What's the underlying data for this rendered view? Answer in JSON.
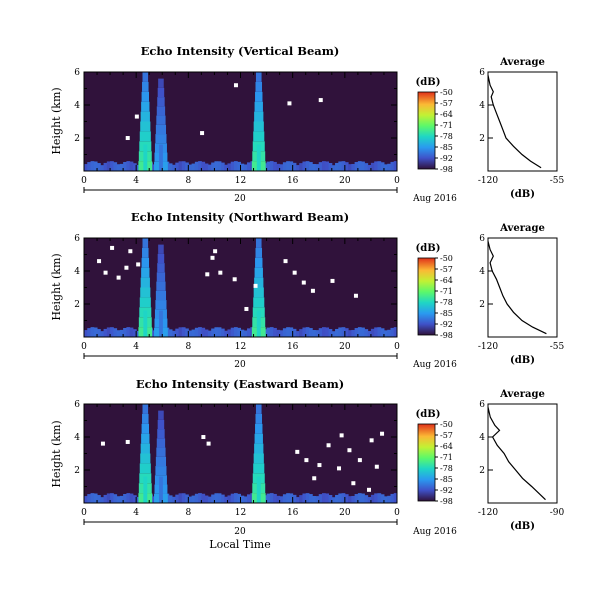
{
  "figure": {
    "date_label": "Aug 2016",
    "day_label": "20",
    "xlabel": "Local Time",
    "colorbar_title": "(dB)",
    "avg_title": "Average",
    "avg_xlabel": "(dB)"
  },
  "chart_data": [
    {
      "type": "heatmap",
      "title": "Echo Intensity (Vertical Beam)",
      "xlabel": "Local Time",
      "ylabel": "Height (km)",
      "xlim": [
        0,
        24
      ],
      "xticks": [
        "0",
        "4",
        "8",
        "12",
        "16",
        "20",
        "0"
      ],
      "ylim": [
        0,
        6
      ],
      "yticks": [
        "2",
        "4",
        "6"
      ],
      "colorbar": {
        "range": [
          -98,
          -50
        ],
        "ticks": [
          "-50",
          "-57",
          "-64",
          "-71",
          "-78",
          "-85",
          "-92",
          "-98"
        ]
      },
      "background_db": -98,
      "bursts": [
        {
          "t": 4.7,
          "top_km": 6.0,
          "peak_db": -74
        },
        {
          "t": 5.9,
          "top_km": 5.6,
          "peak_db": -84
        },
        {
          "t": 13.4,
          "top_km": 6.0,
          "peak_db": -74
        }
      ],
      "average_profile": {
        "title": "Average",
        "xlabel": "(dB)",
        "xlim": [
          -120,
          -55
        ],
        "xticks": [
          "-120",
          "-55"
        ],
        "ylabel": "Height (km)",
        "ylim": [
          0,
          6
        ],
        "yticks": [
          "2",
          "4",
          "6"
        ],
        "points": [
          [
            -70,
            0.2
          ],
          [
            -80,
            0.6
          ],
          [
            -88,
            1.0
          ],
          [
            -96,
            1.5
          ],
          [
            -103,
            2.0
          ],
          [
            -106,
            2.5
          ],
          [
            -109,
            3.0
          ],
          [
            -112,
            3.5
          ],
          [
            -115,
            4.0
          ],
          [
            -117,
            4.5
          ],
          [
            -115,
            4.8
          ],
          [
            -118,
            5.2
          ],
          [
            -120,
            5.8
          ]
        ]
      },
      "missing_cells": [
        [
          3.2,
          2.0
        ],
        [
          8.9,
          2.3
        ],
        [
          3.9,
          3.3
        ],
        [
          15.6,
          4.1
        ],
        [
          11.5,
          5.2
        ],
        [
          18.0,
          4.3
        ]
      ]
    },
    {
      "type": "heatmap",
      "title": "Echo Intensity (Northward Beam)",
      "xlabel": "Local Time",
      "ylabel": "Height (km)",
      "xlim": [
        0,
        24
      ],
      "xticks": [
        "0",
        "4",
        "8",
        "12",
        "16",
        "20",
        "0"
      ],
      "ylim": [
        0,
        6
      ],
      "yticks": [
        "2",
        "4",
        "6"
      ],
      "colorbar": {
        "range": [
          -98,
          -50
        ],
        "ticks": [
          "-50",
          "-57",
          "-64",
          "-71",
          "-78",
          "-85",
          "-92",
          "-98"
        ]
      },
      "background_db": -98,
      "bursts": [
        {
          "t": 4.7,
          "top_km": 6.0,
          "peak_db": -74
        },
        {
          "t": 5.9,
          "top_km": 5.6,
          "peak_db": -84
        },
        {
          "t": 13.4,
          "top_km": 6.0,
          "peak_db": -74
        }
      ],
      "average_profile": {
        "title": "Average",
        "xlabel": "(dB)",
        "xlim": [
          -120,
          -55
        ],
        "xticks": [
          "-120",
          "-55"
        ],
        "ylabel": "Height (km)",
        "ylim": [
          0,
          6
        ],
        "yticks": [
          "2",
          "4",
          "6"
        ],
        "points": [
          [
            -65,
            0.2
          ],
          [
            -78,
            0.6
          ],
          [
            -88,
            1.0
          ],
          [
            -96,
            1.5
          ],
          [
            -102,
            2.0
          ],
          [
            -106,
            2.5
          ],
          [
            -109,
            3.0
          ],
          [
            -112,
            3.5
          ],
          [
            -116,
            4.0
          ],
          [
            -118,
            4.5
          ],
          [
            -115,
            4.9
          ],
          [
            -118,
            5.3
          ],
          [
            -120,
            5.8
          ]
        ]
      },
      "missing_cells": [
        [
          1.0,
          4.6
        ],
        [
          2.0,
          5.4
        ],
        [
          3.1,
          4.2
        ],
        [
          2.5,
          3.6
        ],
        [
          1.5,
          3.9
        ],
        [
          4.0,
          4.4
        ],
        [
          3.4,
          5.2
        ],
        [
          9.3,
          3.8
        ],
        [
          9.7,
          4.8
        ],
        [
          10.3,
          3.9
        ],
        [
          9.9,
          5.2
        ],
        [
          16.0,
          3.9
        ],
        [
          15.3,
          4.6
        ],
        [
          16.7,
          3.3
        ],
        [
          12.3,
          1.7
        ],
        [
          20.7,
          2.5
        ],
        [
          17.4,
          2.8
        ],
        [
          11.4,
          3.5
        ],
        [
          13.0,
          3.1
        ],
        [
          18.9,
          3.4
        ]
      ]
    },
    {
      "type": "heatmap",
      "title": "Echo Intensity (Eastward Beam)",
      "xlabel": "Local Time",
      "ylabel": "Height (km)",
      "xlim": [
        0,
        24
      ],
      "xticks": [
        "0",
        "4",
        "8",
        "12",
        "16",
        "20",
        "0"
      ],
      "ylim": [
        0,
        6
      ],
      "yticks": [
        "2",
        "4",
        "6"
      ],
      "colorbar": {
        "range": [
          -98,
          -50
        ],
        "ticks": [
          "-50",
          "-57",
          "-64",
          "-71",
          "-78",
          "-85",
          "-92",
          "-98"
        ]
      },
      "background_db": -98,
      "bursts": [
        {
          "t": 4.7,
          "top_km": 6.0,
          "peak_db": -74
        },
        {
          "t": 5.9,
          "top_km": 5.6,
          "peak_db": -84
        },
        {
          "t": 13.4,
          "top_km": 6.0,
          "peak_db": -74
        }
      ],
      "average_profile": {
        "title": "Average",
        "xlabel": "(dB)",
        "xlim": [
          -120,
          -90
        ],
        "xticks": [
          "-120",
          "-90"
        ],
        "ylabel": "Height (km)",
        "ylim": [
          0,
          6
        ],
        "yticks": [
          "2",
          "4",
          "6"
        ],
        "points": [
          [
            -95,
            0.2
          ],
          [
            -98,
            0.6
          ],
          [
            -101,
            1.0
          ],
          [
            -105,
            1.5
          ],
          [
            -108,
            2.0
          ],
          [
            -111,
            2.5
          ],
          [
            -113,
            3.0
          ],
          [
            -116,
            3.5
          ],
          [
            -118,
            4.0
          ],
          [
            -115,
            4.4
          ],
          [
            -117,
            4.7
          ],
          [
            -119,
            5.2
          ],
          [
            -120,
            5.8
          ]
        ]
      },
      "missing_cells": [
        [
          1.3,
          3.6
        ],
        [
          3.2,
          3.7
        ],
        [
          9.4,
          3.6
        ],
        [
          9.0,
          4.0
        ],
        [
          16.2,
          3.1
        ],
        [
          16.9,
          2.6
        ],
        [
          17.9,
          2.3
        ],
        [
          18.6,
          3.5
        ],
        [
          19.6,
          4.1
        ],
        [
          20.2,
          3.2
        ],
        [
          21.0,
          2.6
        ],
        [
          21.9,
          3.8
        ],
        [
          22.7,
          4.2
        ],
        [
          20.5,
          1.2
        ],
        [
          21.7,
          0.8
        ],
        [
          19.4,
          2.1
        ],
        [
          22.3,
          2.2
        ],
        [
          17.5,
          1.5
        ]
      ]
    }
  ]
}
